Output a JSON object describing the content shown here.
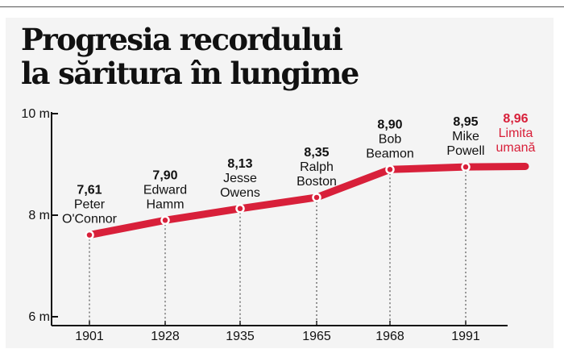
{
  "title_lines": [
    "Progresia recordului",
    "la săritura în lungime"
  ],
  "chart_data": {
    "type": "line",
    "y_ticks": [
      {
        "value": 6,
        "label": "6 m"
      },
      {
        "value": 8,
        "label": "8 m"
      },
      {
        "value": 10,
        "label": "10 m"
      }
    ],
    "ylim": [
      6,
      10
    ],
    "categories": [
      "1901",
      "1928",
      "1935",
      "1965",
      "1968",
      "1991",
      ""
    ],
    "values": [
      7.61,
      7.9,
      8.13,
      8.35,
      8.9,
      8.95,
      8.96
    ],
    "point_labels": [
      {
        "value": "7,61",
        "name": [
          "Peter",
          "O'Connor"
        ]
      },
      {
        "value": "7,90",
        "name": [
          "Edward",
          "Hamm"
        ]
      },
      {
        "value": "8,13",
        "name": [
          "Jesse",
          "Owens"
        ]
      },
      {
        "value": "8,35",
        "name": [
          "Ralph",
          "Boston"
        ]
      },
      {
        "value": "8,90",
        "name": [
          "Bob",
          "Beamon"
        ]
      },
      {
        "value": "8,95",
        "name": [
          "Mike",
          "Powell"
        ]
      },
      {
        "value": "8,96",
        "name": [
          "Limita",
          "umană"
        ]
      }
    ],
    "grid": false,
    "line_color": "#d8203a",
    "highlight_color": "#d8203a",
    "text_color": "#111111"
  }
}
